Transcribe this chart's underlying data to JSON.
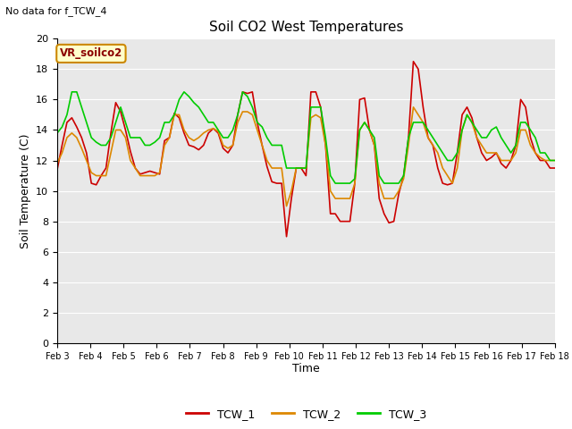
{
  "title": "Soil CO2 West Temperatures",
  "no_data_label": "No data for f_TCW_4",
  "annotation_label": "VR_soilco2",
  "xlabel": "Time",
  "ylabel": "Soil Temperature (C)",
  "ylim": [
    0,
    20
  ],
  "yticks": [
    0,
    2,
    4,
    6,
    8,
    10,
    12,
    14,
    16,
    18,
    20
  ],
  "x_tick_labels": [
    "Feb 3",
    "Feb 4",
    "Feb 5",
    "Feb 6",
    "Feb 7",
    "Feb 8",
    "Feb 9",
    "Feb 10",
    "Feb 11",
    "Feb 12",
    "Feb 13",
    "Feb 14",
    "Feb 15",
    "Feb 16",
    "Feb 17",
    "Feb 18"
  ],
  "bg_color": "#e8e8e8",
  "legend_entries": [
    "TCW_1",
    "TCW_2",
    "TCW_3"
  ],
  "line_colors": [
    "#cc0000",
    "#dd8800",
    "#00cc00"
  ],
  "TCW_1": [
    11.4,
    13.0,
    14.5,
    14.8,
    14.2,
    13.5,
    12.5,
    10.5,
    10.4,
    11.0,
    11.5,
    13.8,
    15.8,
    15.2,
    14.0,
    12.6,
    11.5,
    11.1,
    11.2,
    11.3,
    11.2,
    11.1,
    13.3,
    13.5,
    15.1,
    14.8,
    13.8,
    13.0,
    12.9,
    12.7,
    13.0,
    13.8,
    14.1,
    13.8,
    12.8,
    12.5,
    13.0,
    15.0,
    16.5,
    16.4,
    16.5,
    14.5,
    13.0,
    11.6,
    10.6,
    10.5,
    10.5,
    7.0,
    9.5,
    11.5,
    11.5,
    11.0,
    16.5,
    16.5,
    15.5,
    13.0,
    8.5,
    8.5,
    8.0,
    8.0,
    8.0,
    10.5,
    16.0,
    16.1,
    14.0,
    13.0,
    9.5,
    8.5,
    7.9,
    8.0,
    9.8,
    11.0,
    13.5,
    18.5,
    18.0,
    15.5,
    13.5,
    13.0,
    11.5,
    10.5,
    10.4,
    10.5,
    12.5,
    15.0,
    15.5,
    14.8,
    13.5,
    12.5,
    12.0,
    12.2,
    12.5,
    11.8,
    11.5,
    12.0,
    13.0,
    16.0,
    15.5,
    13.5,
    12.5,
    12.0,
    12.0,
    11.5,
    11.5
  ],
  "TCW_2": [
    11.8,
    12.5,
    13.5,
    13.8,
    13.5,
    12.8,
    12.0,
    11.2,
    11.0,
    11.0,
    11.0,
    12.5,
    14.0,
    14.0,
    13.5,
    12.0,
    11.5,
    11.0,
    11.0,
    11.0,
    11.0,
    11.2,
    13.0,
    13.5,
    15.0,
    15.0,
    14.0,
    13.5,
    13.3,
    13.5,
    13.8,
    14.0,
    14.1,
    13.9,
    13.0,
    12.8,
    13.0,
    14.5,
    15.2,
    15.2,
    15.0,
    14.0,
    13.0,
    12.0,
    11.5,
    11.5,
    11.5,
    9.0,
    10.0,
    11.5,
    11.5,
    11.5,
    14.8,
    15.0,
    14.8,
    13.0,
    10.0,
    9.5,
    9.5,
    9.5,
    9.5,
    10.5,
    14.0,
    14.5,
    14.0,
    13.0,
    10.5,
    9.5,
    9.5,
    9.5,
    10.0,
    10.8,
    13.0,
    15.5,
    15.0,
    14.5,
    13.5,
    13.0,
    12.5,
    11.5,
    11.0,
    10.5,
    11.5,
    14.0,
    15.0,
    14.5,
    13.5,
    13.0,
    12.5,
    12.5,
    12.5,
    12.0,
    12.0,
    12.0,
    12.5,
    14.0,
    14.0,
    13.0,
    12.5,
    12.2,
    12.0,
    12.0,
    12.0
  ],
  "TCW_3": [
    13.8,
    14.2,
    15.0,
    16.5,
    16.5,
    15.5,
    14.5,
    13.5,
    13.2,
    13.0,
    13.0,
    13.5,
    14.5,
    15.5,
    14.5,
    13.5,
    13.5,
    13.5,
    13.0,
    13.0,
    13.2,
    13.5,
    14.5,
    14.5,
    15.0,
    16.0,
    16.5,
    16.2,
    15.8,
    15.5,
    15.0,
    14.5,
    14.5,
    14.0,
    13.5,
    13.5,
    14.0,
    15.0,
    16.5,
    16.2,
    15.5,
    14.5,
    14.2,
    13.5,
    13.0,
    13.0,
    13.0,
    11.5,
    11.5,
    11.5,
    11.5,
    11.5,
    15.5,
    15.5,
    15.5,
    13.5,
    11.0,
    10.5,
    10.5,
    10.5,
    10.5,
    10.8,
    14.0,
    14.5,
    14.0,
    13.5,
    11.0,
    10.5,
    10.5,
    10.5,
    10.5,
    11.0,
    13.5,
    14.5,
    14.5,
    14.5,
    14.0,
    13.5,
    13.0,
    12.5,
    12.0,
    12.0,
    12.5,
    14.0,
    15.0,
    14.5,
    14.0,
    13.5,
    13.5,
    14.0,
    14.2,
    13.5,
    13.0,
    12.5,
    13.0,
    14.5,
    14.5,
    14.0,
    13.5,
    12.5,
    12.5,
    12.0,
    12.0
  ]
}
